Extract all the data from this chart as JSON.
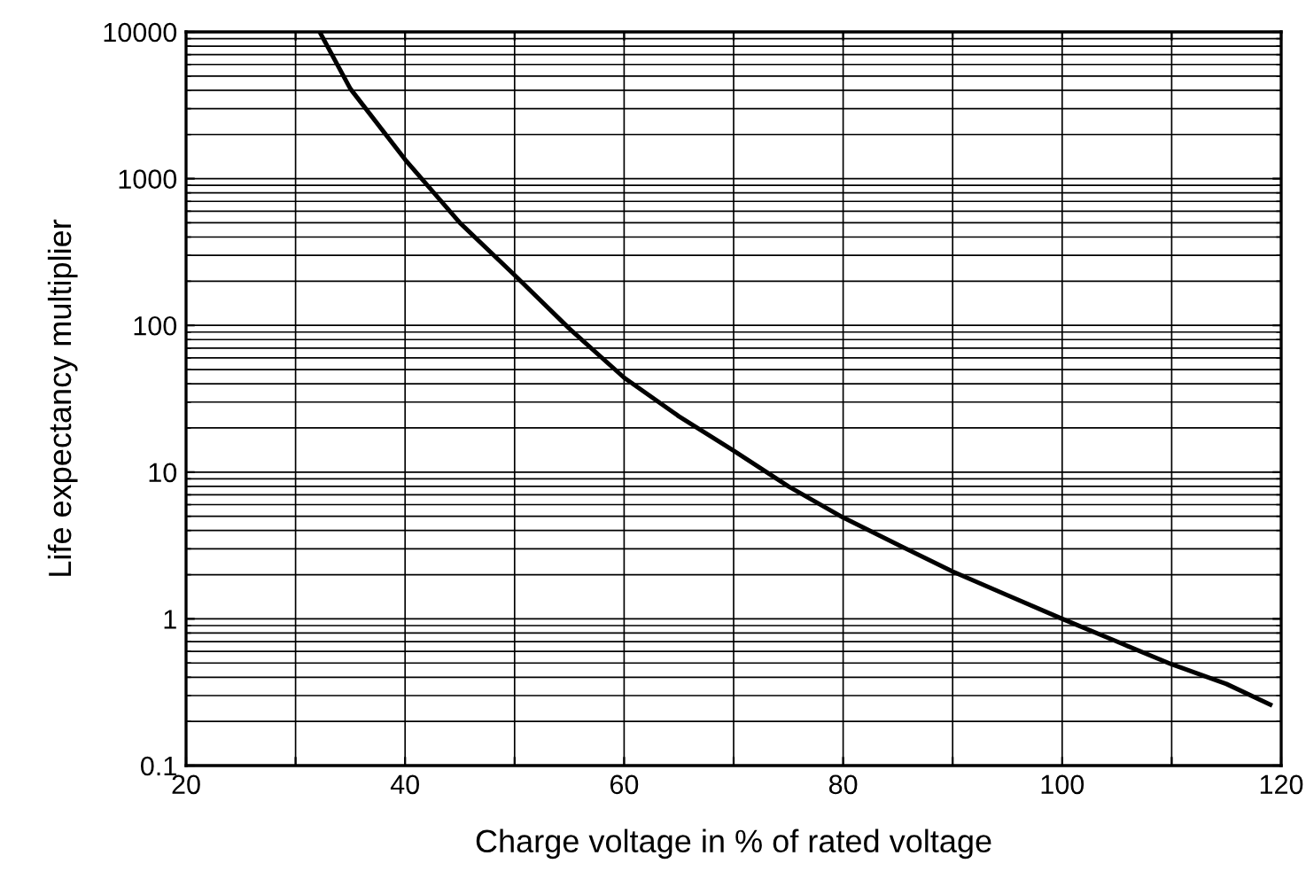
{
  "chart_data": {
    "type": "line",
    "xlabel": "Charge voltage in % of rated voltage",
    "ylabel": "Life expectancy multiplier",
    "x": [
      32.2,
      35,
      40,
      45,
      50,
      55,
      60,
      65,
      70,
      75,
      80,
      85,
      90,
      95,
      100,
      105,
      110,
      115,
      119
    ],
    "series": [
      {
        "color": "#000000",
        "values": [
          10000,
          4100,
          1350,
          500,
          220,
          95,
          44,
          24,
          14,
          8,
          4.9,
          3.2,
          2.1,
          1.45,
          1.0,
          0.7,
          0.49,
          0.36,
          0.26
        ]
      }
    ],
    "xlim": [
      20,
      120
    ],
    "xticks": [
      20,
      {
        "value": 30,
        "label": null
      },
      40,
      {
        "value": 50,
        "label": null
      },
      60,
      {
        "value": 70,
        "label": null
      },
      80,
      {
        "value": 90,
        "label": null
      },
      100,
      {
        "value": 110,
        "label": null
      },
      120
    ],
    "ylim": [
      0.1,
      10000
    ],
    "yticks": [
      0.1,
      1,
      10,
      100,
      1000,
      10000
    ],
    "log": "y",
    "grid": true,
    "marker": "none",
    "line_style": "solid"
  }
}
